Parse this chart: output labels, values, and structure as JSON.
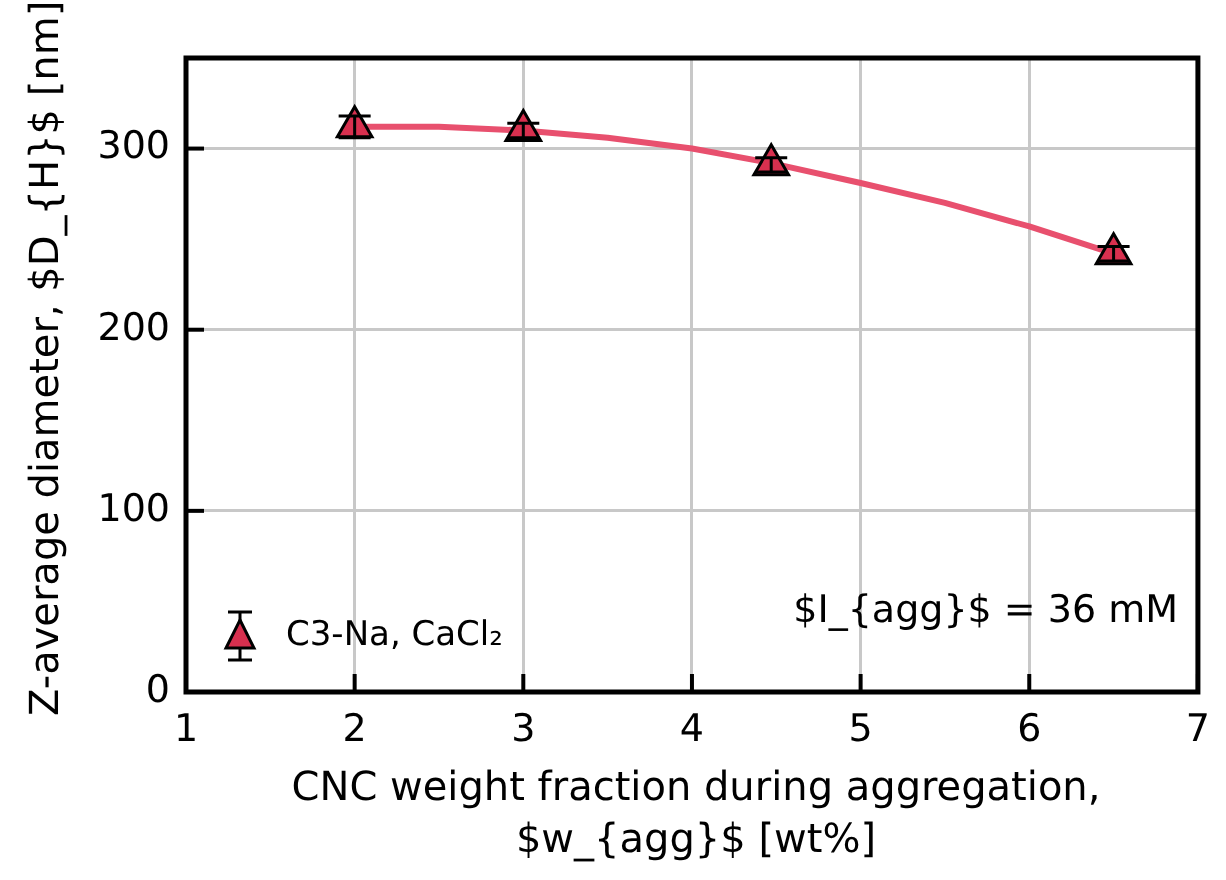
{
  "chart_data": {
    "type": "scatter",
    "xlabel": "CNC weight fraction during aggregation, $w_{agg}$ [wt%]",
    "ylabel": "Z-average diameter, $D_{H}$ [nm]",
    "annotations": [
      "$I_{agg}$ = 36 mM"
    ],
    "xlim": [
      1,
      7
    ],
    "xticks": [
      1,
      2,
      3,
      4,
      5,
      6,
      7
    ],
    "ylim": [
      0,
      350
    ],
    "yticks": [
      0,
      100,
      200,
      300
    ],
    "grid": true,
    "legend": "bottom left",
    "series": [
      {
        "name": "C3-Na, CaCl₂",
        "type": "scatter",
        "marker": "triangle",
        "color": "#d8304f",
        "x": [
          2,
          3,
          4.47,
          6.5
        ],
        "values": [
          312,
          310,
          291,
          242
        ],
        "errors": [
          6,
          4,
          4,
          4
        ]
      },
      {
        "type": "line",
        "marker": "none",
        "color": "#e8506e",
        "x": [
          2,
          2.5,
          3,
          3.5,
          4,
          4.47,
          5,
          5.5,
          6,
          6.5
        ],
        "values": [
          312,
          312,
          310,
          306,
          300,
          292,
          281,
          270,
          257,
          242
        ]
      }
    ]
  }
}
